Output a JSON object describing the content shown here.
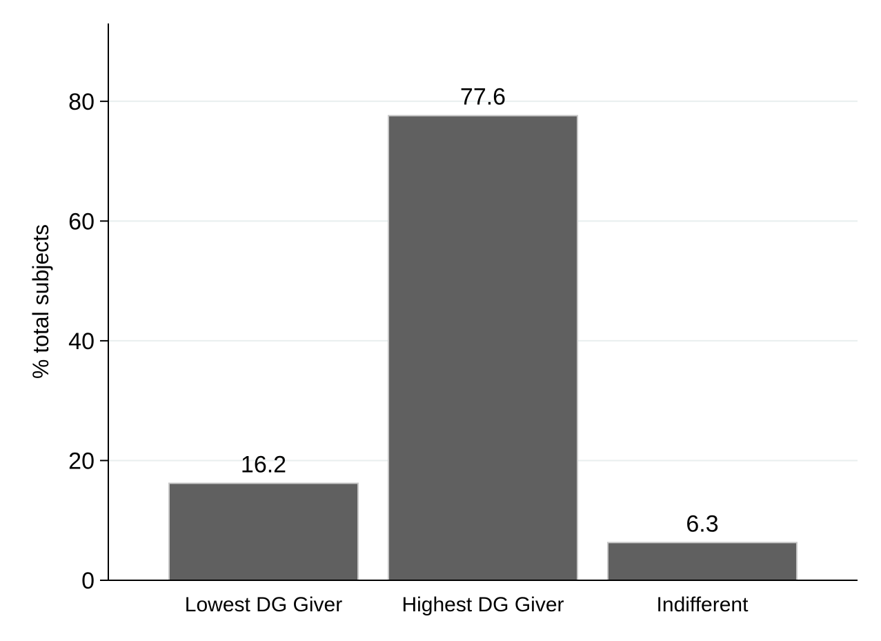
{
  "chart_data": {
    "type": "bar",
    "title": "",
    "xlabel": "",
    "ylabel": "% total subjects",
    "categories": [
      "Lowest DG Giver",
      "Highest DG Giver",
      "Indifferent"
    ],
    "values": [
      16.2,
      77.6,
      6.3
    ],
    "data_labels": [
      "16.2",
      "77.6",
      "6.3"
    ],
    "ylim": [
      0,
      93
    ],
    "yticks": [
      0,
      20,
      40,
      60,
      80
    ],
    "grid": true,
    "legend": "none",
    "colors": {
      "bar_fill": "#606060",
      "bar_edge": "#c8c8c8",
      "grid": "#e8eeee",
      "axis": "#000000"
    }
  }
}
